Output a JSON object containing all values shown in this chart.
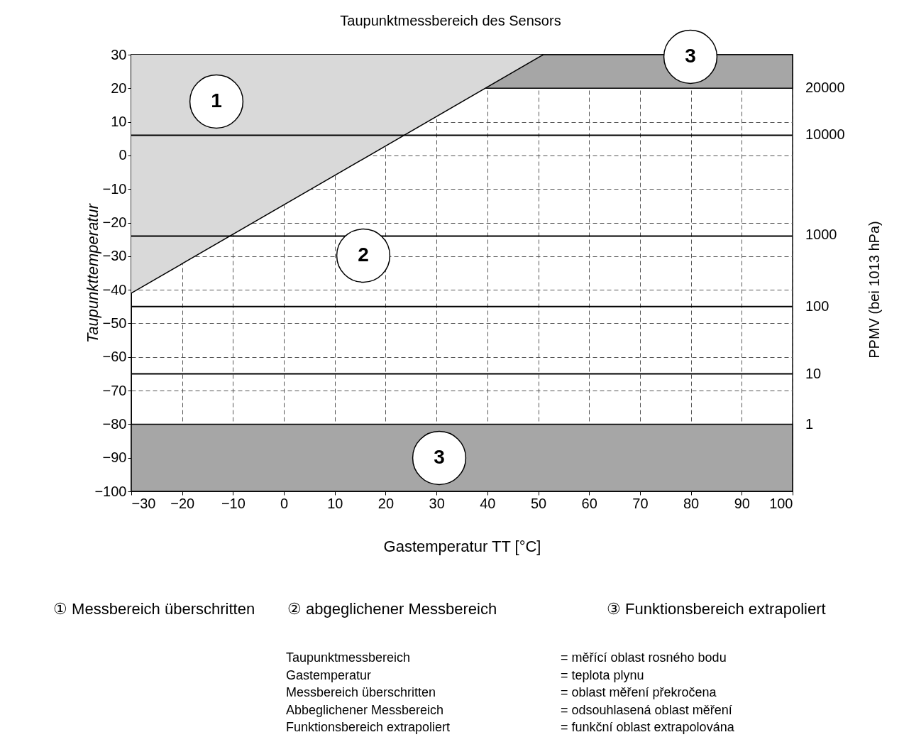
{
  "chart_data": {
    "type": "line",
    "title": "Taupunktmessbereich des Sensors",
    "xlabel": "Gastemperatur TT [°C]",
    "ylabel": "Taupunkttemperatur",
    "xlim": [
      -30,
      100
    ],
    "xticks": [
      -30,
      -20,
      -10,
      0,
      10,
      20,
      30,
      40,
      50,
      60,
      70,
      80,
      90,
      100
    ],
    "ylim": [
      -100,
      30
    ],
    "yticks": [
      -100,
      -90,
      -80,
      -70,
      -60,
      -50,
      -40,
      -30,
      -20,
      -10,
      0,
      10,
      20,
      30
    ],
    "grid": true,
    "line_style": "solid",
    "marker": "none",
    "series": [
      {
        "color": "#000000",
        "x": [
          -30,
          51
        ],
        "values": [
          -41,
          30
        ],
        "lower": [
          -41,
          30
        ],
        "upper": [
          30,
          30
        ]
      }
    ],
    "bands": [
      {
        "axis": "y",
        "from": -100,
        "to": -80,
        "color": "#a6a6a6"
      },
      {
        "axis": "y",
        "from": 20,
        "to": 30,
        "color": "#a6a6a6"
      }
    ],
    "ref_lines": [
      {
        "axis": "y",
        "value": 6
      },
      {
        "axis": "y",
        "value": -24
      },
      {
        "axis": "y",
        "value": -45
      },
      {
        "axis": "y",
        "value": -65
      }
    ],
    "annotations": [
      "1",
      "2",
      "3",
      "3",
      "20000",
      "10000",
      "1000",
      "100",
      "10",
      "1",
      "PPMV (bei 1013 hPa)",
      "① Messbereich überschritten",
      "② abgeglichener Messbereich",
      "③ Funktionsbereich extrapoliert",
      "Taupunktmessbereich",
      "= měřící oblast rosného bodu",
      "Gastemperatur",
      "= teplota plynu",
      "Messbereich überschritten",
      "= oblast měření překročena",
      "Abbeglichener Messbereich",
      "= odsouhlasená oblast měření",
      "Funktionsbereich extrapoliert",
      "= funkční oblast extrapolována"
    ]
  }
}
